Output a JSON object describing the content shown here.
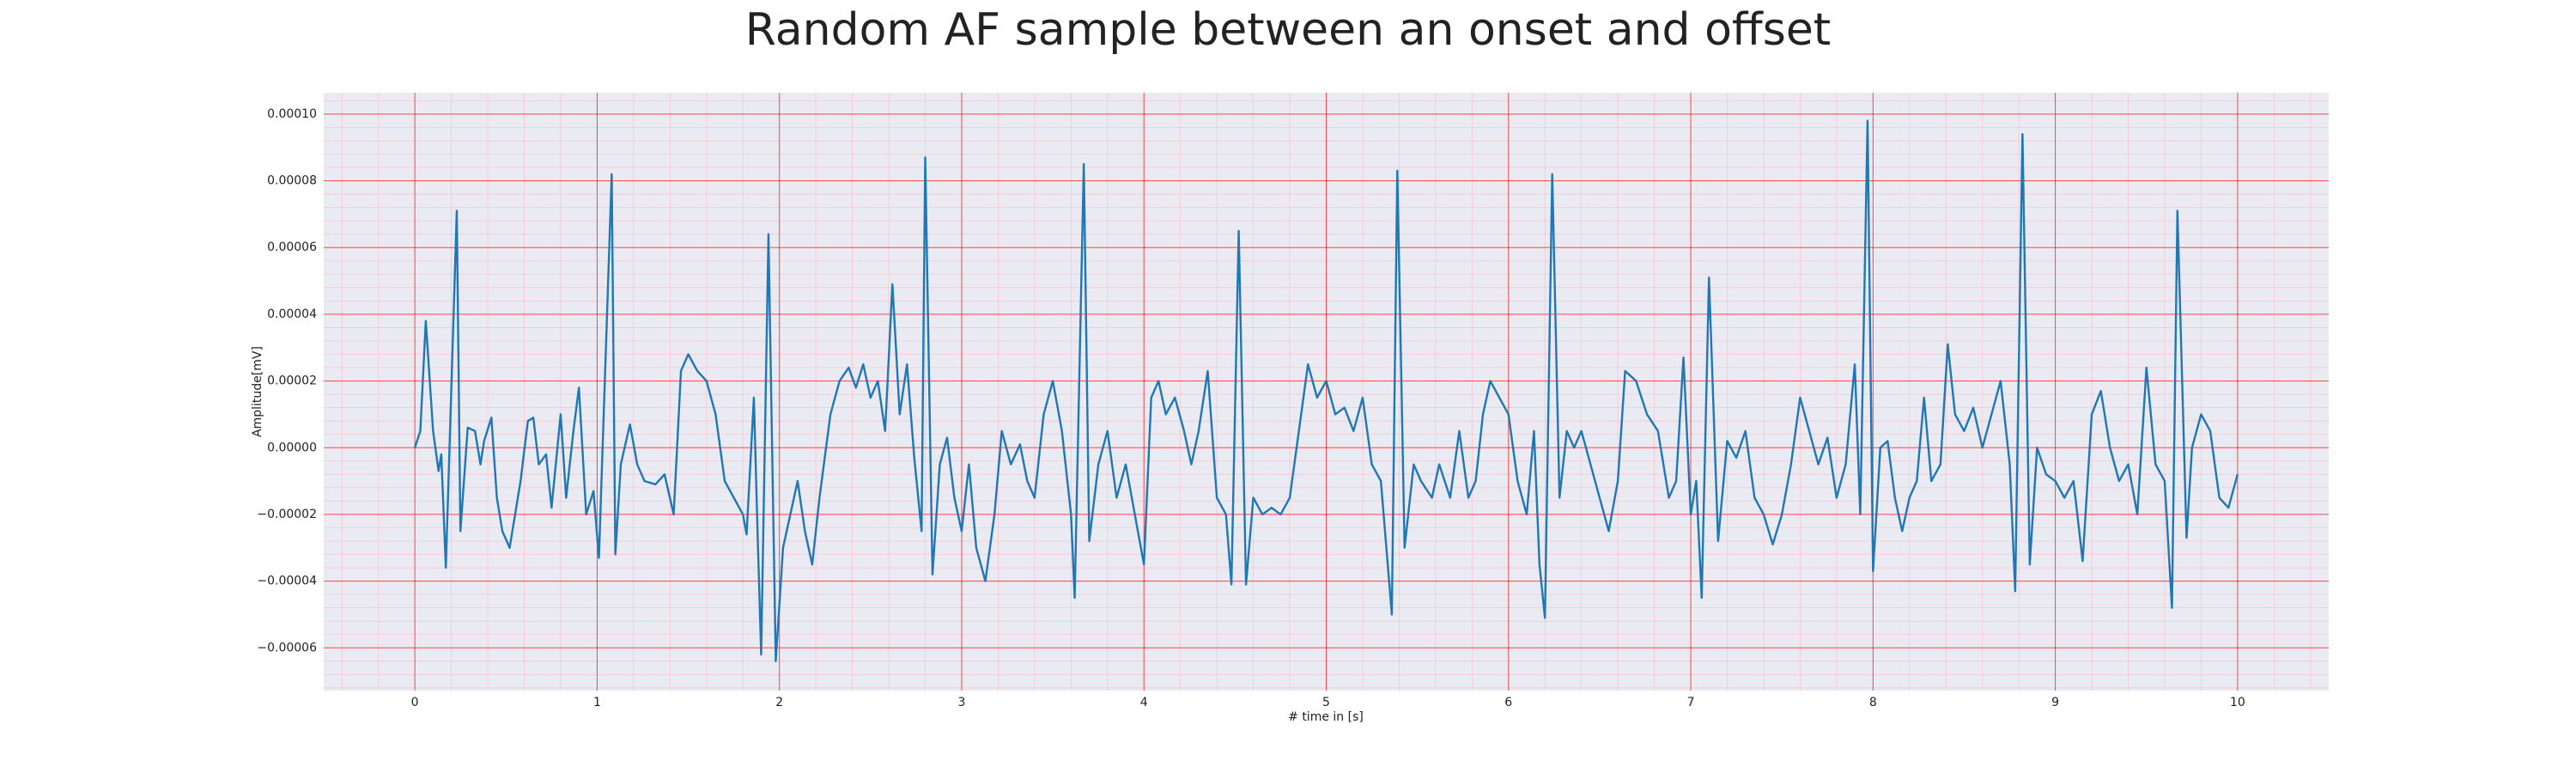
{
  "chart_data": {
    "type": "line",
    "title": "Random AF sample between an onset and offset",
    "xlabel": "# time in [s]",
    "ylabel": "Amplitude[mV]",
    "xlim": [
      -0.5,
      10.5
    ],
    "ylim": [
      -7.28e-05,
      0.0001064
    ],
    "xticks": [
      0,
      1,
      2,
      3,
      4,
      5,
      6,
      7,
      8,
      9,
      10
    ],
    "yticks": [
      {
        "value": -6e-05,
        "label": "−0.00006"
      },
      {
        "value": -4e-05,
        "label": "−0.00004"
      },
      {
        "value": -2e-05,
        "label": "−0.00002"
      },
      {
        "value": 0,
        "label": "0.00000"
      },
      {
        "value": 2e-05,
        "label": "0.00002"
      },
      {
        "value": 4e-05,
        "label": "0.00004"
      },
      {
        "value": 6e-05,
        "label": "0.00006"
      },
      {
        "value": 8e-05,
        "label": "0.00008"
      },
      {
        "value": 0.0001,
        "label": "0.00010"
      }
    ],
    "xminorticks": [
      -0.4,
      -0.2,
      0.2,
      0.4,
      0.6,
      0.8,
      1.2,
      1.4,
      1.6,
      1.8,
      2.2,
      2.4,
      2.6,
      2.8,
      3.2,
      3.4,
      3.6,
      3.8,
      4.2,
      4.4,
      4.6,
      4.8,
      5.2,
      5.4,
      5.6,
      5.8,
      6.2,
      6.4,
      6.6,
      6.8,
      7.2,
      7.4,
      7.6,
      7.8,
      8.2,
      8.4,
      8.6,
      8.8,
      9.2,
      9.4,
      9.6,
      9.8,
      10.2,
      10.4
    ],
    "yminorticks": [
      -7.2e-05,
      -6.8e-05,
      -6.4e-05,
      -5.6e-05,
      -5.2e-05,
      -4.8e-05,
      -4.4e-05,
      -3.6e-05,
      -3.2e-05,
      -2.8e-05,
      -2.4e-05,
      -1.6e-05,
      -1.2e-05,
      -8e-06,
      -4e-06,
      4e-06,
      8e-06,
      1.2e-05,
      1.6e-05,
      2.4e-05,
      2.8e-05,
      3.2e-05,
      3.6e-05,
      4.4e-05,
      4.8e-05,
      5.2e-05,
      5.6e-05,
      6.4e-05,
      6.8e-05,
      7.2e-05,
      7.6e-05,
      8.4e-05,
      8.8e-05,
      9.2e-05,
      9.6e-05,
      0.000104
    ],
    "grid": true,
    "grid_color": "#ff0000",
    "minor_grid_color": "#ffb6c1",
    "background": "#eaeaf2",
    "series": [
      {
        "color": "#1f77b4",
        "x": [
          0,
          0.03,
          0.06,
          0.1,
          0.13,
          0.145,
          0.17,
          0.23,
          0.25,
          0.29,
          0.33,
          0.36,
          0.38,
          0.42,
          0.45,
          0.48,
          0.52,
          0.55,
          0.58,
          0.62,
          0.65,
          0.68,
          0.72,
          0.75,
          0.8,
          0.83,
          0.87,
          0.9,
          0.94,
          0.98,
          1.01,
          1.08,
          1.1,
          1.13,
          1.18,
          1.22,
          1.26,
          1.32,
          1.37,
          1.42,
          1.46,
          1.5,
          1.55,
          1.6,
          1.65,
          1.7,
          1.75,
          1.8,
          1.82,
          1.86,
          1.88,
          1.9,
          1.94,
          1.98,
          2.02,
          2.06,
          2.1,
          2.14,
          2.18,
          2.22,
          2.28,
          2.33,
          2.38,
          2.42,
          2.46,
          2.5,
          2.54,
          2.58,
          2.62,
          2.66,
          2.7,
          2.74,
          2.78,
          2.8,
          2.84,
          2.88,
          2.92,
          2.96,
          3.0,
          3.04,
          3.08,
          3.13,
          3.18,
          3.22,
          3.27,
          3.32,
          3.36,
          3.4,
          3.45,
          3.5,
          3.55,
          3.6,
          3.62,
          3.67,
          3.7,
          3.75,
          3.8,
          3.85,
          3.9,
          3.95,
          4.0,
          4.04,
          4.08,
          4.12,
          4.17,
          4.22,
          4.26,
          4.3,
          4.35,
          4.4,
          4.45,
          4.48,
          4.52,
          4.56,
          4.6,
          4.65,
          4.7,
          4.75,
          4.8,
          4.85,
          4.9,
          4.95,
          5.0,
          5.05,
          5.1,
          5.15,
          5.2,
          5.25,
          5.3,
          5.33,
          5.36,
          5.39,
          5.43,
          5.48,
          5.52,
          5.58,
          5.62,
          5.68,
          5.73,
          5.78,
          5.82,
          5.86,
          5.9,
          5.95,
          6.0,
          6.05,
          6.1,
          6.14,
          6.17,
          6.2,
          6.24,
          6.28,
          6.32,
          6.36,
          6.4,
          6.45,
          6.5,
          6.55,
          6.6,
          6.64,
          6.7,
          6.76,
          6.82,
          6.88,
          6.92,
          6.96,
          7.0,
          7.03,
          7.06,
          7.1,
          7.15,
          7.2,
          7.25,
          7.3,
          7.35,
          7.4,
          7.45,
          7.5,
          7.55,
          7.6,
          7.65,
          7.7,
          7.75,
          7.8,
          7.85,
          7.9,
          7.93,
          7.97,
          8.0,
          8.04,
          8.08,
          8.12,
          8.16,
          8.2,
          8.24,
          8.28,
          8.32,
          8.37,
          8.41,
          8.45,
          8.5,
          8.55,
          8.6,
          8.65,
          8.7,
          8.75,
          8.78,
          8.82,
          8.86,
          8.9,
          8.95,
          9.0,
          9.05,
          9.1,
          9.15,
          9.2,
          9.25,
          9.3,
          9.35,
          9.4,
          9.45,
          9.5,
          9.55,
          9.6,
          9.64,
          9.67,
          9.72,
          9.75,
          9.8,
          9.85,
          9.9,
          9.95,
          10.0
        ],
        "values": [
          0,
          5e-06,
          3.8e-05,
          5e-06,
          -7e-06,
          -2e-06,
          -3.6e-05,
          7.1e-05,
          -2.5e-05,
          6e-06,
          5e-06,
          -5e-06,
          2e-06,
          9e-06,
          -1.5e-05,
          -2.5e-05,
          -3e-05,
          -2e-05,
          -1e-05,
          8e-06,
          9e-06,
          -5e-06,
          -2e-06,
          -1.8e-05,
          1e-05,
          -1.5e-05,
          5e-06,
          1.8e-05,
          -2e-05,
          -1.3e-05,
          -3.3e-05,
          8.2e-05,
          -3.2e-05,
          -5e-06,
          7e-06,
          -5e-06,
          -1e-05,
          -1.1e-05,
          -8e-06,
          -2e-05,
          2.3e-05,
          2.8e-05,
          2.3e-05,
          2e-05,
          1e-05,
          -1e-05,
          -1.5e-05,
          -2e-05,
          -2.6e-05,
          1.5e-05,
          -2.5e-05,
          -6.2e-05,
          6.4e-05,
          -6.4e-05,
          -3e-05,
          -2e-05,
          -1e-05,
          -2.5e-05,
          -3.5e-05,
          -1.5e-05,
          1e-05,
          2e-05,
          2.4e-05,
          1.8e-05,
          2.5e-05,
          1.5e-05,
          2e-05,
          5e-06,
          4.9e-05,
          1e-05,
          2.5e-05,
          -3e-06,
          -2.5e-05,
          8.7e-05,
          -3.8e-05,
          -5e-06,
          3e-06,
          -1.5e-05,
          -2.5e-05,
          -5e-06,
          -3e-05,
          -4e-05,
          -2e-05,
          5e-06,
          -5e-06,
          1e-06,
          -1e-05,
          -1.5e-05,
          1e-05,
          2e-05,
          5e-06,
          -2e-05,
          -4.5e-05,
          8.5e-05,
          -2.8e-05,
          -5e-06,
          5e-06,
          -1.5e-05,
          -5e-06,
          -2e-05,
          -3.5e-05,
          1.5e-05,
          2e-05,
          1e-05,
          1.5e-05,
          5e-06,
          -5e-06,
          5e-06,
          2.3e-05,
          -1.5e-05,
          -2e-05,
          -4.1e-05,
          6.5e-05,
          -4.1e-05,
          -1.5e-05,
          -2e-05,
          -1.8e-05,
          -2e-05,
          -1.5e-05,
          5e-06,
          2.5e-05,
          1.5e-05,
          2e-05,
          1e-05,
          1.2e-05,
          5e-06,
          1.5e-05,
          -5e-06,
          -1e-05,
          -3e-05,
          -5e-05,
          8.3e-05,
          -3e-05,
          -5e-06,
          -1e-05,
          -1.5e-05,
          -5e-06,
          -1.5e-05,
          5e-06,
          -1.5e-05,
          -1e-05,
          1e-05,
          2e-05,
          1.5e-05,
          1e-05,
          -1e-05,
          -2e-05,
          5e-06,
          -3.5e-05,
          -5.1e-05,
          8.2e-05,
          -1.5e-05,
          5e-06,
          0,
          5e-06,
          -5e-06,
          -1.5e-05,
          -2.5e-05,
          -1e-05,
          2.3e-05,
          2e-05,
          1e-05,
          5e-06,
          -1.5e-05,
          -1e-05,
          2.7e-05,
          -2e-05,
          -1e-05,
          -4.5e-05,
          5.1e-05,
          -2.8e-05,
          2e-06,
          -3e-06,
          5e-06,
          -1.5e-05,
          -2e-05,
          -2.9e-05,
          -2e-05,
          -5e-06,
          1.5e-05,
          5e-06,
          -5e-06,
          3e-06,
          -1.5e-05,
          -5e-06,
          2.5e-05,
          -2e-05,
          9.8e-05,
          -3.7e-05,
          0,
          2e-06,
          -1.5e-05,
          -2.5e-05,
          -1.5e-05,
          -1e-05,
          1.5e-05,
          -1e-05,
          -5e-06,
          3.1e-05,
          1e-05,
          5e-06,
          1.2e-05,
          0,
          1e-05,
          2e-05,
          -5e-06,
          -4.3e-05,
          9.4e-05,
          -3.5e-05,
          0,
          -8e-06,
          -1e-05,
          -1.5e-05,
          -1e-05,
          -3.4e-05,
          1e-05,
          1.7e-05,
          0,
          -1e-05,
          -5e-06,
          -2e-05,
          2.4e-05,
          -5e-06,
          -1e-05,
          -4.8e-05,
          7.1e-05,
          -2.7e-05,
          0,
          1e-05,
          5e-06,
          -1.5e-05,
          -1.8e-05,
          -8e-06
        ]
      }
    ]
  }
}
